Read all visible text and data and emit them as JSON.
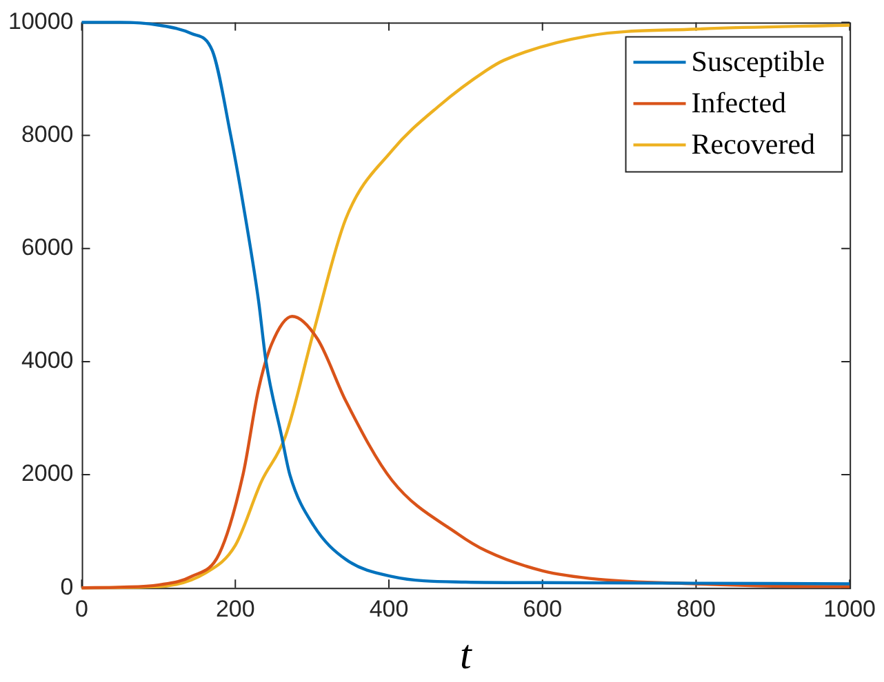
{
  "chart_data": {
    "type": "line",
    "xlabel": "t",
    "xlim": [
      0,
      1000
    ],
    "xticks": [
      0,
      200,
      400,
      600,
      800,
      1000
    ],
    "ylim": [
      0,
      10000
    ],
    "yticks": [
      0,
      2000,
      4000,
      6000,
      8000,
      10000
    ],
    "grid": false,
    "legend": "top right",
    "marker": "none",
    "line_style": "solid",
    "series": [
      {
        "name": "Susceptible",
        "color": "#0072bd",
        "x": [
          0,
          50,
          100,
          143,
          170,
          194,
          210,
          230,
          240,
          260,
          271,
          302,
          344,
          404,
          500,
          600,
          800,
          1000
        ],
        "values": [
          10000,
          10000,
          9950,
          9800,
          9500,
          8000,
          6800,
          5100,
          4000,
          2700,
          2000,
          1100,
          500,
          200,
          100,
          90,
          80,
          70
        ]
      },
      {
        "name": "Infected",
        "color": "#d95319",
        "x": [
          0,
          50,
          100,
          143,
          179,
          210,
          230,
          247,
          274,
          307,
          344,
          404,
          490,
          527,
          600,
          673,
          800,
          900,
          1000
        ],
        "values": [
          0,
          10,
          50,
          200,
          600,
          2000,
          3500,
          4300,
          4800,
          4400,
          3300,
          1900,
          950,
          650,
          300,
          150,
          70,
          30,
          20
        ]
      },
      {
        "name": "Recovered",
        "color": "#edb120",
        "x": [
          0,
          100,
          161,
          200,
          234,
          265,
          302,
          344,
          404,
          466,
          527,
          550,
          660,
          800,
          1000
        ],
        "values": [
          0,
          20,
          260,
          750,
          1880,
          2670,
          4530,
          6530,
          7730,
          8530,
          9150,
          9330,
          9760,
          9880,
          9950
        ]
      }
    ]
  }
}
